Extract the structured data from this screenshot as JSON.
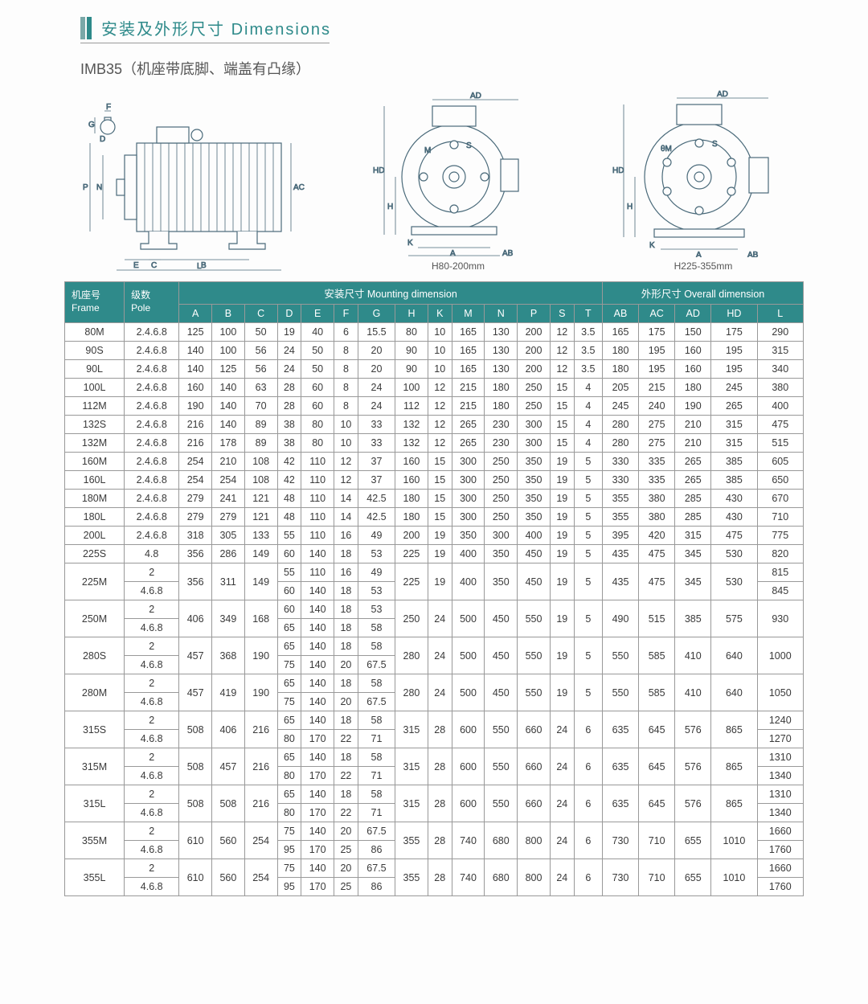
{
  "title": {
    "cn": "安装及外形尺寸",
    "en": "Dimensions"
  },
  "subtitle": "IMB35（机座带底脚、端盖有凸缘）",
  "diagrams": {
    "side_labels": [
      "F",
      "G",
      "D",
      "P",
      "N",
      "E",
      "C",
      "B",
      "L",
      "AC"
    ],
    "front_labels": [
      "AD",
      "M",
      "HD",
      "H",
      "K",
      "A",
      "AB",
      "S",
      "θM"
    ],
    "caption1": "H80-200mm",
    "caption2": "H225-355mm"
  },
  "headers": {
    "frame_cn": "机座号",
    "frame_en": "Frame",
    "pole_cn": "级数",
    "pole_en": "Pole",
    "mounting": "安装尺寸 Mounting dimension",
    "overall": "外形尺寸 Overall dimension",
    "cols_m": [
      "A",
      "B",
      "C",
      "D",
      "E",
      "F",
      "G",
      "H",
      "K",
      "M",
      "N",
      "P",
      "S",
      "T"
    ],
    "cols_o": [
      "AB",
      "AC",
      "AD",
      "HD",
      "L"
    ]
  },
  "rows": [
    {
      "frame": "80M",
      "pole": "2.4.6.8",
      "m": [
        "125",
        "100",
        "50",
        "19",
        "40",
        "6",
        "15.5",
        "80",
        "10",
        "165",
        "130",
        "200",
        "12",
        "3.5"
      ],
      "o": [
        "165",
        "175",
        "150",
        "175",
        "290"
      ]
    },
    {
      "frame": "90S",
      "pole": "2.4.6.8",
      "m": [
        "140",
        "100",
        "56",
        "24",
        "50",
        "8",
        "20",
        "90",
        "10",
        "165",
        "130",
        "200",
        "12",
        "3.5"
      ],
      "o": [
        "180",
        "195",
        "160",
        "195",
        "315"
      ]
    },
    {
      "frame": "90L",
      "pole": "2.4.6.8",
      "m": [
        "140",
        "125",
        "56",
        "24",
        "50",
        "8",
        "20",
        "90",
        "10",
        "165",
        "130",
        "200",
        "12",
        "3.5"
      ],
      "o": [
        "180",
        "195",
        "160",
        "195",
        "340"
      ]
    },
    {
      "frame": "100L",
      "pole": "2.4.6.8",
      "m": [
        "160",
        "140",
        "63",
        "28",
        "60",
        "8",
        "24",
        "100",
        "12",
        "215",
        "180",
        "250",
        "15",
        "4"
      ],
      "o": [
        "205",
        "215",
        "180",
        "245",
        "380"
      ]
    },
    {
      "frame": "112M",
      "pole": "2.4.6.8",
      "m": [
        "190",
        "140",
        "70",
        "28",
        "60",
        "8",
        "24",
        "112",
        "12",
        "215",
        "180",
        "250",
        "15",
        "4"
      ],
      "o": [
        "245",
        "240",
        "190",
        "265",
        "400"
      ]
    },
    {
      "frame": "132S",
      "pole": "2.4.6.8",
      "m": [
        "216",
        "140",
        "89",
        "38",
        "80",
        "10",
        "33",
        "132",
        "12",
        "265",
        "230",
        "300",
        "15",
        "4"
      ],
      "o": [
        "280",
        "275",
        "210",
        "315",
        "475"
      ]
    },
    {
      "frame": "132M",
      "pole": "2.4.6.8",
      "m": [
        "216",
        "178",
        "89",
        "38",
        "80",
        "10",
        "33",
        "132",
        "12",
        "265",
        "230",
        "300",
        "15",
        "4"
      ],
      "o": [
        "280",
        "275",
        "210",
        "315",
        "515"
      ]
    },
    {
      "frame": "160M",
      "pole": "2.4.6.8",
      "m": [
        "254",
        "210",
        "108",
        "42",
        "110",
        "12",
        "37",
        "160",
        "15",
        "300",
        "250",
        "350",
        "19",
        "5"
      ],
      "o": [
        "330",
        "335",
        "265",
        "385",
        "605"
      ]
    },
    {
      "frame": "160L",
      "pole": "2.4.6.8",
      "m": [
        "254",
        "254",
        "108",
        "42",
        "110",
        "12",
        "37",
        "160",
        "15",
        "300",
        "250",
        "350",
        "19",
        "5"
      ],
      "o": [
        "330",
        "335",
        "265",
        "385",
        "650"
      ]
    },
    {
      "frame": "180M",
      "pole": "2.4.6.8",
      "m": [
        "279",
        "241",
        "121",
        "48",
        "110",
        "14",
        "42.5",
        "180",
        "15",
        "300",
        "250",
        "350",
        "19",
        "5"
      ],
      "o": [
        "355",
        "380",
        "285",
        "430",
        "670"
      ]
    },
    {
      "frame": "180L",
      "pole": "2.4.6.8",
      "m": [
        "279",
        "279",
        "121",
        "48",
        "110",
        "14",
        "42.5",
        "180",
        "15",
        "300",
        "250",
        "350",
        "19",
        "5"
      ],
      "o": [
        "355",
        "380",
        "285",
        "430",
        "710"
      ]
    },
    {
      "frame": "200L",
      "pole": "2.4.6.8",
      "m": [
        "318",
        "305",
        "133",
        "55",
        "110",
        "16",
        "49",
        "200",
        "19",
        "350",
        "300",
        "400",
        "19",
        "5"
      ],
      "o": [
        "395",
        "420",
        "315",
        "475",
        "775"
      ]
    },
    {
      "frame": "225S",
      "pole": "4.8",
      "m": [
        "356",
        "286",
        "149",
        "60",
        "140",
        "18",
        "53",
        "225",
        "19",
        "400",
        "350",
        "450",
        "19",
        "5"
      ],
      "o": [
        "435",
        "475",
        "345",
        "530",
        "820"
      ]
    }
  ],
  "groups": [
    {
      "frame": "225M",
      "abc": [
        "356",
        "311",
        "149"
      ],
      "poles": [
        {
          "p": "2",
          "defg": [
            "55",
            "110",
            "16",
            "49"
          ],
          "L": "815"
        },
        {
          "p": "4.6.8",
          "defg": [
            "60",
            "140",
            "18",
            "53"
          ],
          "L": "845"
        }
      ],
      "rest": [
        "225",
        "19",
        "400",
        "350",
        "450",
        "19",
        "5",
        "435",
        "475",
        "345",
        "530"
      ]
    },
    {
      "frame": "250M",
      "abc": [
        "406",
        "349",
        "168"
      ],
      "poles": [
        {
          "p": "2",
          "defg": [
            "60",
            "140",
            "18",
            "53"
          ],
          "L": "930"
        },
        {
          "p": "4.6.8",
          "defg": [
            "65",
            "140",
            "18",
            "58"
          ],
          "L": null
        }
      ],
      "rest": [
        "250",
        "24",
        "500",
        "450",
        "550",
        "19",
        "5",
        "490",
        "515",
        "385",
        "575"
      ],
      "L_merged": "930"
    },
    {
      "frame": "280S",
      "abc": [
        "457",
        "368",
        "190"
      ],
      "poles": [
        {
          "p": "2",
          "defg": [
            "65",
            "140",
            "18",
            "58"
          ],
          "L": "1000"
        },
        {
          "p": "4.6.8",
          "defg": [
            "75",
            "140",
            "20",
            "67.5"
          ],
          "L": null
        }
      ],
      "rest": [
        "280",
        "24",
        "500",
        "450",
        "550",
        "19",
        "5",
        "550",
        "585",
        "410",
        "640"
      ],
      "L_merged": "1000"
    },
    {
      "frame": "280M",
      "abc": [
        "457",
        "419",
        "190"
      ],
      "poles": [
        {
          "p": "2",
          "defg": [
            "65",
            "140",
            "18",
            "58"
          ],
          "L": "1050"
        },
        {
          "p": "4.6.8",
          "defg": [
            "75",
            "140",
            "20",
            "67.5"
          ],
          "L": null
        }
      ],
      "rest": [
        "280",
        "24",
        "500",
        "450",
        "550",
        "19",
        "5",
        "550",
        "585",
        "410",
        "640"
      ],
      "L_merged": "1050"
    },
    {
      "frame": "315S",
      "abc": [
        "508",
        "406",
        "216"
      ],
      "poles": [
        {
          "p": "2",
          "defg": [
            "65",
            "140",
            "18",
            "58"
          ],
          "L": "1240"
        },
        {
          "p": "4.6.8",
          "defg": [
            "80",
            "170",
            "22",
            "71"
          ],
          "L": "1270"
        }
      ],
      "rest": [
        "315",
        "28",
        "600",
        "550",
        "660",
        "24",
        "6",
        "635",
        "645",
        "576",
        "865"
      ]
    },
    {
      "frame": "315M",
      "abc": [
        "508",
        "457",
        "216"
      ],
      "poles": [
        {
          "p": "2",
          "defg": [
            "65",
            "140",
            "18",
            "58"
          ],
          "L": "1310"
        },
        {
          "p": "4.6.8",
          "defg": [
            "80",
            "170",
            "22",
            "71"
          ],
          "L": "1340"
        }
      ],
      "rest": [
        "315",
        "28",
        "600",
        "550",
        "660",
        "24",
        "6",
        "635",
        "645",
        "576",
        "865"
      ]
    },
    {
      "frame": "315L",
      "abc": [
        "508",
        "508",
        "216"
      ],
      "poles": [
        {
          "p": "2",
          "defg": [
            "65",
            "140",
            "18",
            "58"
          ],
          "L": "1310"
        },
        {
          "p": "4.6.8",
          "defg": [
            "80",
            "170",
            "22",
            "71"
          ],
          "L": "1340"
        }
      ],
      "rest": [
        "315",
        "28",
        "600",
        "550",
        "660",
        "24",
        "6",
        "635",
        "645",
        "576",
        "865"
      ]
    },
    {
      "frame": "355M",
      "abc": [
        "610",
        "560",
        "254"
      ],
      "poles": [
        {
          "p": "2",
          "defg": [
            "75",
            "140",
            "20",
            "67.5"
          ],
          "L": "1660"
        },
        {
          "p": "4.6.8",
          "defg": [
            "95",
            "170",
            "25",
            "86"
          ],
          "L": "1760"
        }
      ],
      "rest": [
        "355",
        "28",
        "740",
        "680",
        "800",
        "24",
        "6",
        "730",
        "710",
        "655",
        "1010"
      ]
    },
    {
      "frame": "355L",
      "abc": [
        "610",
        "560",
        "254"
      ],
      "poles": [
        {
          "p": "2",
          "defg": [
            "75",
            "140",
            "20",
            "67.5"
          ],
          "L": "1660"
        },
        {
          "p": "4.6.8",
          "defg": [
            "95",
            "170",
            "25",
            "86"
          ],
          "L": "1760"
        }
      ],
      "rest": [
        "355",
        "28",
        "740",
        "680",
        "800",
        "24",
        "6",
        "730",
        "710",
        "655",
        "1010"
      ]
    }
  ],
  "colors": {
    "header_bg": "#2f8a8a",
    "header_fg": "#ffffff",
    "border": "#999999",
    "accent": "#2e8a8a"
  }
}
